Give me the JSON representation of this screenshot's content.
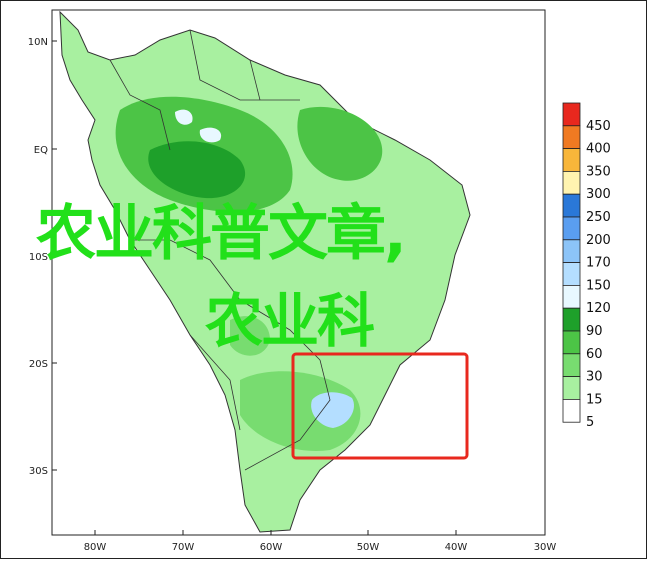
{
  "map": {
    "lat_labels": [
      "10N",
      "EQ",
      "10S",
      "20S",
      "30S"
    ],
    "lon_labels": [
      "80W",
      "70W",
      "60W",
      "50W",
      "40W",
      "30W"
    ],
    "land_color": "#a8f0a0",
    "border_color": "#333333"
  },
  "legend": {
    "levels": [
      {
        "label": "450",
        "color": "#e8281e"
      },
      {
        "label": "400",
        "color": "#f07a22"
      },
      {
        "label": "350",
        "color": "#f8b63a"
      },
      {
        "label": "300",
        "color": "#fff4b0"
      },
      {
        "label": "250",
        "color": "#2a78d8"
      },
      {
        "label": "200",
        "color": "#5a9ef0"
      },
      {
        "label": "170",
        "color": "#8cc4f8"
      },
      {
        "label": "150",
        "color": "#b4deff"
      },
      {
        "label": "120",
        "color": "#e8f8ff"
      },
      {
        "label": "90",
        "color": "#1ea02a"
      },
      {
        "label": "60",
        "color": "#4cc446"
      },
      {
        "label": "30",
        "color": "#78dc70"
      },
      {
        "label": "15",
        "color": "#a8f0a0"
      },
      {
        "label": "5",
        "color": "#ffffff"
      }
    ]
  },
  "overlay": {
    "title": "农业科普文章,",
    "subtitle": "农业科"
  },
  "highlight_box_color": "#e8281e"
}
